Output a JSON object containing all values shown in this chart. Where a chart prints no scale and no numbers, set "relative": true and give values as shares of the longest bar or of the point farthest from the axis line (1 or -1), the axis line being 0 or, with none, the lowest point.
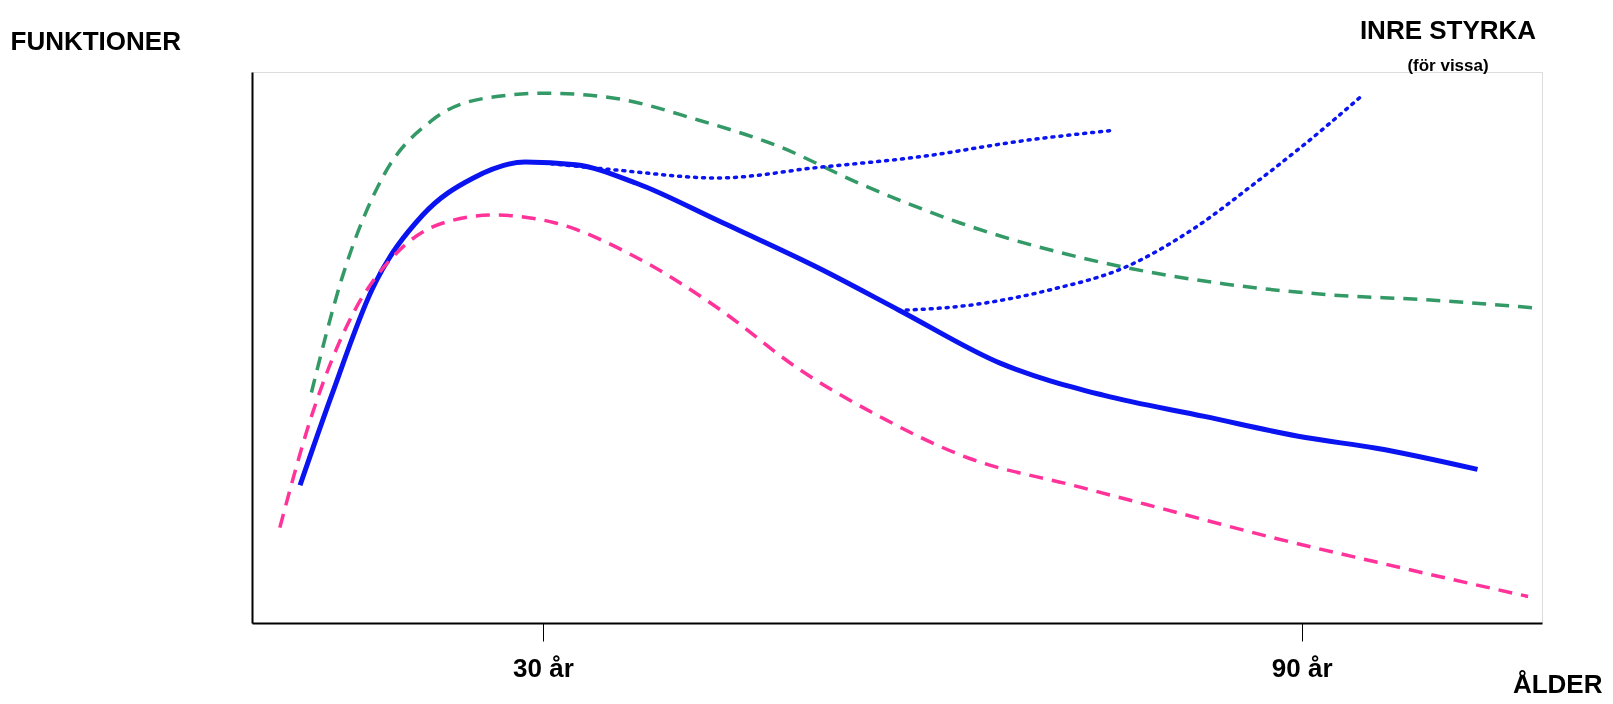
{
  "chart_data": {
    "type": "line",
    "relative": true,
    "xlabel": "ÅLDER",
    "ylabel": "FUNKTIONER",
    "annotations": [
      "INRE STYRKA",
      "(för vissa)"
    ],
    "xlim": [
      7,
      109
    ],
    "xticks": [
      {
        "value": 30,
        "label": "30 år"
      },
      {
        "value": 90,
        "label": "90 år"
      }
    ],
    "grid": false,
    "marker": "none",
    "series": [
      {
        "color": "#0a14f0",
        "line_style": "solid",
        "x": [
          10.8,
          13.3,
          16.5,
          20.5,
          24.5,
          28.6,
          32.6,
          37.4,
          43.8,
          51.8,
          58.2,
          66.2,
          74.3,
          82.3,
          90.3,
          95.9,
          103.9
        ],
        "values": [
          0.26,
          0.43,
          0.63,
          0.77,
          0.84,
          0.87,
          0.865,
          0.83,
          0.76,
          0.67,
          0.59,
          0.49,
          0.43,
          0.39,
          0.35,
          0.33,
          0.29
        ]
      },
      {
        "color": "#339966",
        "line_style": "dashed",
        "x": [
          11.7,
          14.1,
          17.3,
          21.3,
          25.3,
          30.2,
          35.8,
          42.2,
          48.6,
          55.0,
          63.0,
          74.3,
          83.9,
          91.9,
          99.9,
          108.3
        ],
        "values": [
          0.435,
          0.65,
          0.84,
          0.95,
          0.99,
          1.0,
          0.99,
          0.95,
          0.9,
          0.83,
          0.755,
          0.68,
          0.64,
          0.62,
          0.61,
          0.595
        ]
      },
      {
        "color": "#ff3399",
        "line_style": "dashed",
        "x": [
          9.2,
          11.7,
          14.9,
          18.1,
          22.1,
          26.2,
          31.0,
          37.4,
          43.8,
          50.2,
          56.6,
          63.8,
          71.9,
          79.9,
          87.9,
          95.9,
          107.9
        ],
        "values": [
          0.18,
          0.39,
          0.58,
          0.69,
          0.755,
          0.77,
          0.755,
          0.69,
          0.595,
          0.48,
          0.39,
          0.31,
          0.26,
          0.21,
          0.16,
          0.115,
          0.05
        ]
      },
      {
        "color": "#0a14f0",
        "line_style": "dotted",
        "x": [
          29.4,
          35.8,
          43.8,
          51.8,
          59.8,
          67.9,
          75.1
        ],
        "values": [
          0.87,
          0.855,
          0.84,
          0.86,
          0.88,
          0.91,
          0.93
        ]
      },
      {
        "color": "#0a14f0",
        "line_style": "dotted",
        "x": [
          58.1,
          63.8,
          70.3,
          75.9,
          81.5,
          86.3,
          90.3,
          94.7
        ],
        "values": [
          0.59,
          0.6,
          0.63,
          0.67,
          0.745,
          0.83,
          0.905,
          0.994
        ]
      }
    ]
  }
}
